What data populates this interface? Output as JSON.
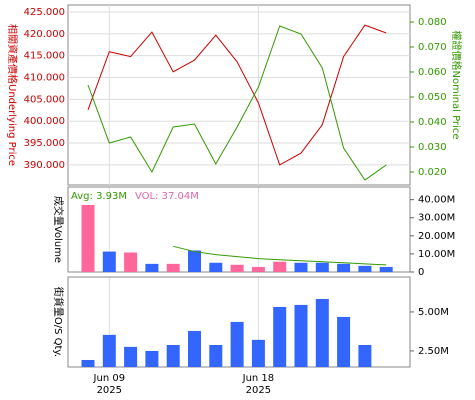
{
  "chart_data": [
    {
      "type": "line",
      "y_label": "相關資產價格Underlying Price",
      "y2_label": "權證價格Nominal Price",
      "categories": [
        null,
        "Jun 09",
        null,
        null,
        null,
        null,
        null,
        null,
        "Jun 18",
        null,
        null,
        null,
        null,
        null,
        null
      ],
      "category_years": [
        null,
        "2025",
        null,
        null,
        null,
        null,
        null,
        null,
        "2025",
        null,
        null,
        null,
        null,
        null,
        null
      ],
      "series": [
        {
          "name": "Underlying Price",
          "color": "#cc0000",
          "values": [
            402.6,
            415.9,
            414.8,
            420.4,
            411.3,
            414.0,
            419.7,
            413.6,
            404.2,
            390.0,
            392.7,
            399.2,
            414.8,
            422.0,
            420.2
          ]
        },
        {
          "name": "Nominal Price",
          "color": "#339900",
          "axis": "y2",
          "values": [
            0.0548,
            0.0316,
            0.034,
            0.02,
            0.038,
            0.0392,
            0.0232,
            0.038,
            0.054,
            0.0784,
            0.0752,
            0.0616,
            0.0296,
            0.0168,
            0.0228
          ]
        }
      ],
      "ylim": [
        385.4,
        426.6
      ],
      "yticks": [
        {
          "value": 390,
          "label": "390.000"
        },
        {
          "value": 395,
          "label": "395.000"
        },
        {
          "value": 400,
          "label": "400.000"
        },
        {
          "value": 405,
          "label": "405.000"
        },
        {
          "value": 410,
          "label": "410.000"
        },
        {
          "value": 415,
          "label": "415.000"
        },
        {
          "value": 420,
          "label": "420.000"
        },
        {
          "value": 425,
          "label": "425.000"
        }
      ],
      "y2lim": [
        0.0148,
        0.0868
      ],
      "y2ticks": [
        {
          "value": 0.02,
          "label": "0.020"
        },
        {
          "value": 0.03,
          "label": "0.030"
        },
        {
          "value": 0.04,
          "label": "0.040"
        },
        {
          "value": 0.05,
          "label": "0.050"
        },
        {
          "value": 0.06,
          "label": "0.060"
        },
        {
          "value": 0.07,
          "label": "0.070"
        },
        {
          "value": 0.08,
          "label": "0.080"
        }
      ],
      "grid": true
    },
    {
      "type": "bar",
      "y_label": "成交量Volume",
      "legend": [
        "Avg: 3.93M",
        "VOL: 37.04M"
      ],
      "legend_colors": [
        "#339900",
        "#dd66aa"
      ],
      "values": [
        37.04,
        11.3,
        10.8,
        4.5,
        4.5,
        11.9,
        5.1,
        4.0,
        2.8,
        5.7,
        5.1,
        5.1,
        4.5,
        3.4,
        2.8
      ],
      "colors": [
        "#ff6699",
        "#3366ff",
        "#ff6699",
        "#3366ff",
        "#ff6699",
        "#3366ff",
        "#3366ff",
        "#ff6699",
        "#ff6699",
        "#ff6699",
        "#3366ff",
        "#3366ff",
        "#3366ff",
        "#3366ff",
        "#3366ff"
      ],
      "avg_color": "#339900",
      "avg_values": [
        null,
        null,
        null,
        null,
        14.2,
        11.3,
        9.6,
        8.5,
        7.4,
        6.8,
        6.2,
        5.7,
        5.1,
        4.5,
        3.93
      ],
      "ylim": [
        0,
        47
      ],
      "yticks": [
        0,
        {
          "value": 10,
          "label": "10.00M"
        },
        {
          "value": 20,
          "label": "20.00M"
        },
        {
          "value": 30,
          "label": "30.00M"
        },
        {
          "value": 40,
          "label": "40.00M"
        }
      ]
    },
    {
      "type": "bar",
      "y_label": "街貨量O/S Qty.",
      "values": [
        1.92,
        3.53,
        2.76,
        2.5,
        2.88,
        3.78,
        2.88,
        4.36,
        3.21,
        5.32,
        5.45,
        5.83,
        4.68,
        2.88,
        null
      ],
      "color": "#3366ff",
      "ylim": [
        1.47,
        7.24
      ],
      "yticks": [
        {
          "value": 2.5,
          "label": "2.50M"
        },
        {
          "value": 5,
          "label": "5.00M"
        }
      ]
    }
  ]
}
